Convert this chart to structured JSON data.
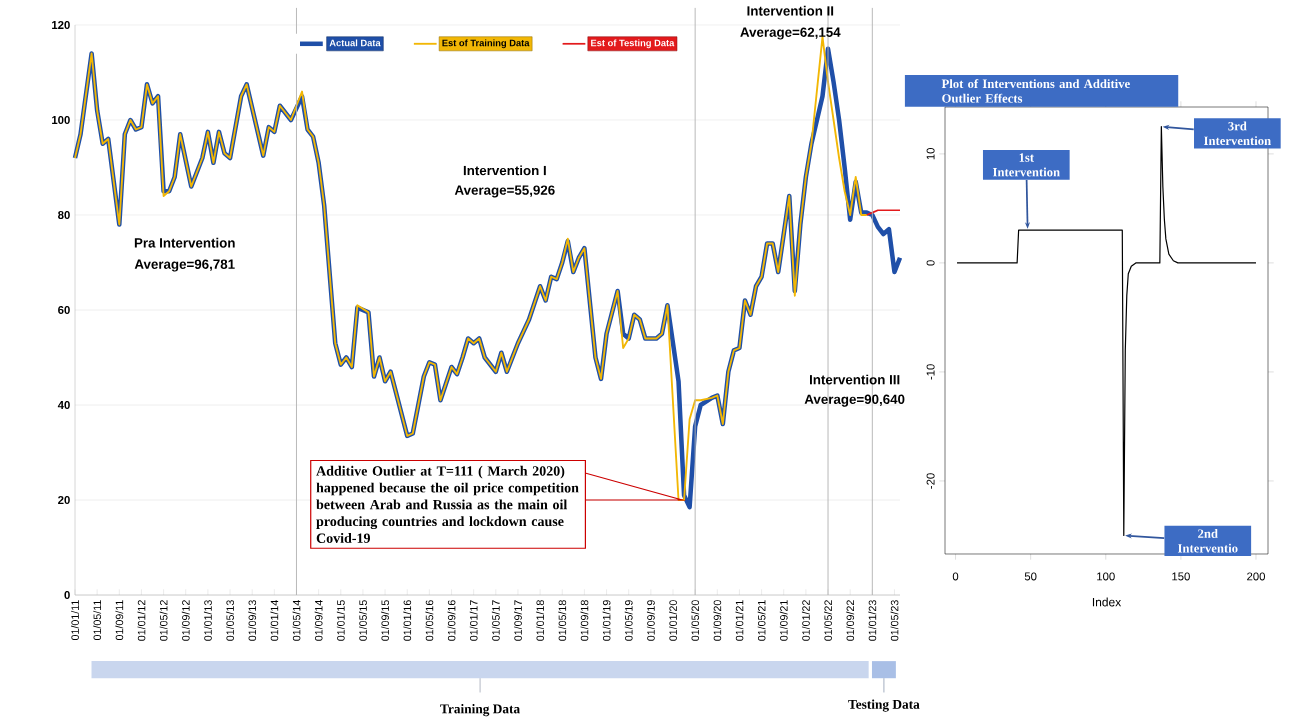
{
  "chart_data": [
    {
      "type": "line",
      "xlim": [
        "2011-01",
        "2023-06"
      ],
      "ylim": [
        0,
        120
      ],
      "yticks": [
        0,
        20,
        40,
        60,
        80,
        100,
        120
      ],
      "grid": "y",
      "legend": "top",
      "xticks": [
        {
          "value": "2011-01",
          "label": "01/01/11"
        },
        {
          "value": "2011-05",
          "label": "01/05/11"
        },
        {
          "value": "2011-09",
          "label": "01/09/11"
        },
        {
          "value": "2012-01",
          "label": "01/01/12"
        },
        {
          "value": "2012-05",
          "label": "01/05/12"
        },
        {
          "value": "2012-09",
          "label": "01/09/12"
        },
        {
          "value": "2013-01",
          "label": "01/01/13"
        },
        {
          "value": "2013-05",
          "label": "01/05/13"
        },
        {
          "value": "2013-09",
          "label": "01/09/13"
        },
        {
          "value": "2014-01",
          "label": "01/01/14"
        },
        {
          "value": "2014-05",
          "label": "01/05/14"
        },
        {
          "value": "2014-09",
          "label": "01/09/14"
        },
        {
          "value": "2015-01",
          "label": "01/01/15"
        },
        {
          "value": "2015-05",
          "label": "01/05/15"
        },
        {
          "value": "2015-09",
          "label": "01/09/15"
        },
        {
          "value": "2016-01",
          "label": "01/01/16"
        },
        {
          "value": "2016-05",
          "label": "01/05/16"
        },
        {
          "value": "2016-09",
          "label": "01/09/16"
        },
        {
          "value": "2017-01",
          "label": "01/01/17"
        },
        {
          "value": "2017-05",
          "label": "01/05/17"
        },
        {
          "value": "2017-09",
          "label": "01/09/17"
        },
        {
          "value": "2018-01",
          "label": "01/01/18"
        },
        {
          "value": "2018-05",
          "label": "01/05/18"
        },
        {
          "value": "2018-09",
          "label": "01/09/18"
        },
        {
          "value": "2019-01",
          "label": "01/01/19"
        },
        {
          "value": "2019-05",
          "label": "01/05/19"
        },
        {
          "value": "2019-09",
          "label": "01/09/19"
        },
        {
          "value": "2020-01",
          "label": "01/01/20"
        },
        {
          "value": "2020-05",
          "label": "01/05/20"
        },
        {
          "value": "2020-09",
          "label": "01/09/20"
        },
        {
          "value": "2021-01",
          "label": "01/01/21"
        },
        {
          "value": "2021-05",
          "label": "01/05/21"
        },
        {
          "value": "2021-09",
          "label": "01/09/21"
        },
        {
          "value": "2022-01",
          "label": "01/01/22"
        },
        {
          "value": "2022-05",
          "label": "01/05/22"
        },
        {
          "value": "2022-09",
          "label": "01/09/22"
        },
        {
          "value": "2023-01",
          "label": "01/01/23"
        },
        {
          "value": "2023-05",
          "label": "01/05/23"
        }
      ],
      "series": [
        {
          "name": "Actual Data",
          "color": "#1f4fa8",
          "x": [
            "2011-01",
            "2011-02",
            "2011-04",
            "2011-05",
            "2011-06",
            "2011-07",
            "2011-09",
            "2011-10",
            "2011-11",
            "2011-12",
            "2012-01",
            "2012-02",
            "2012-03",
            "2012-04",
            "2012-05",
            "2012-06",
            "2012-07",
            "2012-08",
            "2012-10",
            "2012-12",
            "2013-01",
            "2013-02",
            "2013-03",
            "2013-04",
            "2013-05",
            "2013-07",
            "2013-08",
            "2013-11",
            "2013-12",
            "2014-01",
            "2014-02",
            "2014-04",
            "2014-06",
            "2014-07",
            "2014-08",
            "2014-09",
            "2014-10",
            "2014-12",
            "2015-01",
            "2015-02",
            "2015-03",
            "2015-04",
            "2015-06",
            "2015-07",
            "2015-08",
            "2015-09",
            "2015-10",
            "2016-01",
            "2016-02",
            "2016-04",
            "2016-05",
            "2016-06",
            "2016-07",
            "2016-09",
            "2016-10",
            "2016-11",
            "2016-12",
            "2017-01",
            "2017-02",
            "2017-03",
            "2017-05",
            "2017-06",
            "2017-07",
            "2017-09",
            "2017-11",
            "2018-01",
            "2018-02",
            "2018-03",
            "2018-04",
            "2018-05",
            "2018-06",
            "2018-07",
            "2018-08",
            "2018-09",
            "2018-11",
            "2018-12",
            "2019-01",
            "2019-03",
            "2019-04",
            "2019-05",
            "2019-06",
            "2019-07",
            "2019-08",
            "2019-10",
            "2019-11",
            "2019-12",
            "2020-02",
            "2020-03",
            "2020-04",
            "2020-05",
            "2020-06",
            "2020-08",
            "2020-09",
            "2020-10",
            "2020-11",
            "2020-12",
            "2021-01",
            "2021-02",
            "2021-03",
            "2021-04",
            "2021-05",
            "2021-06",
            "2021-07",
            "2021-08",
            "2021-10",
            "2021-11",
            "2021-12",
            "2022-01",
            "2022-02",
            "2022-04",
            "2022-05",
            "2022-06",
            "2022-07",
            "2022-08",
            "2022-09",
            "2022-10",
            "2022-11",
            "2022-12",
            "2023-01",
            "2023-02",
            "2023-03",
            "2023-04",
            "2023-05",
            "2023-06"
          ],
          "values": [
            92,
            97,
            114,
            102,
            95,
            96,
            78,
            97,
            100,
            98,
            98.5,
            107.5,
            103.5,
            105,
            85,
            85,
            88,
            97,
            86,
            92,
            97.5,
            91,
            97.5,
            93,
            92,
            105,
            107.5,
            92.5,
            98.5,
            97.5,
            103,
            100,
            105,
            98,
            96.5,
            91,
            82,
            53,
            48.5,
            50,
            48,
            60.5,
            59.5,
            46,
            50,
            45,
            47,
            33.5,
            34,
            46,
            49,
            48.5,
            41,
            48,
            46.5,
            50,
            54,
            53,
            54,
            50,
            47,
            51,
            47,
            53,
            58,
            65,
            62,
            67,
            66.5,
            70,
            74.5,
            68,
            71,
            73,
            50,
            45.5,
            55,
            64,
            55,
            54,
            59,
            58,
            54,
            54,
            55,
            61,
            45,
            21,
            18.5,
            35.5,
            40,
            41.5,
            42,
            36,
            47,
            51.5,
            52,
            62,
            59,
            65,
            67,
            74,
            74,
            68,
            84,
            64,
            78,
            88,
            95,
            105,
            115,
            108,
            100,
            90,
            79,
            87,
            80.5,
            80.5,
            80,
            77.5,
            76,
            77,
            68,
            71
          ]
        },
        {
          "name": "Est of Training Data",
          "color": "#f2b705",
          "x": [
            "2011-01",
            "2011-02",
            "2011-04",
            "2011-05",
            "2011-06",
            "2011-07",
            "2011-09",
            "2011-10",
            "2011-11",
            "2011-12",
            "2012-01",
            "2012-02",
            "2012-03",
            "2012-04",
            "2012-05",
            "2012-06",
            "2012-07",
            "2012-08",
            "2012-10",
            "2012-12",
            "2013-01",
            "2013-02",
            "2013-03",
            "2013-04",
            "2013-05",
            "2013-07",
            "2013-08",
            "2013-11",
            "2013-12",
            "2014-01",
            "2014-02",
            "2014-04",
            "2014-06",
            "2014-07",
            "2014-08",
            "2014-09",
            "2014-10",
            "2014-12",
            "2015-01",
            "2015-02",
            "2015-03",
            "2015-04",
            "2015-06",
            "2015-07",
            "2015-08",
            "2015-09",
            "2015-10",
            "2016-01",
            "2016-02",
            "2016-04",
            "2016-05",
            "2016-06",
            "2016-07",
            "2016-09",
            "2016-10",
            "2016-11",
            "2016-12",
            "2017-01",
            "2017-02",
            "2017-03",
            "2017-05",
            "2017-06",
            "2017-07",
            "2017-09",
            "2017-11",
            "2018-01",
            "2018-02",
            "2018-03",
            "2018-04",
            "2018-05",
            "2018-06",
            "2018-07",
            "2018-08",
            "2018-09",
            "2018-11",
            "2018-12",
            "2019-01",
            "2019-03",
            "2019-04",
            "2019-05",
            "2019-06",
            "2019-07",
            "2019-08",
            "2019-10",
            "2019-11",
            "2019-12",
            "2020-02",
            "2020-03",
            "2020-04",
            "2020-05",
            "2020-06",
            "2020-08",
            "2020-09",
            "2020-10",
            "2020-11",
            "2020-12",
            "2021-01",
            "2021-02",
            "2021-03",
            "2021-04",
            "2021-05",
            "2021-06",
            "2021-07",
            "2021-08",
            "2021-10",
            "2021-11",
            "2021-12",
            "2022-01",
            "2022-02",
            "2022-04",
            "2022-05",
            "2022-06",
            "2022-07",
            "2022-08",
            "2022-09",
            "2022-10",
            "2022-11",
            "2022-12"
          ],
          "values": [
            92,
            97,
            114,
            102,
            95,
            96,
            78,
            97,
            100,
            98,
            98.5,
            107.5,
            103.5,
            105,
            84,
            85,
            88,
            97,
            86,
            92,
            97.5,
            91,
            97.5,
            93,
            92,
            105,
            107.5,
            92.5,
            98.5,
            97.5,
            103,
            100,
            106,
            98,
            96.5,
            91,
            82,
            53,
            48.5,
            50,
            48,
            61,
            59.5,
            46,
            50,
            45,
            47,
            33.5,
            34,
            46,
            49,
            48.5,
            41,
            48,
            46.5,
            50,
            54,
            53,
            54,
            50,
            47,
            51,
            47,
            53,
            58,
            65,
            62,
            67,
            66.5,
            70,
            75,
            68,
            71,
            73,
            50,
            45.5,
            55,
            64,
            52,
            54,
            59,
            58,
            54,
            54,
            55,
            61,
            20,
            20,
            37,
            41,
            41,
            41.5,
            42,
            36,
            47,
            51.5,
            52,
            62,
            59,
            65,
            67,
            74,
            74,
            68,
            84,
            63,
            78,
            88,
            95,
            117.5,
            108,
            100,
            92,
            85,
            80,
            88,
            80,
            80
          ]
        },
        {
          "name": "Est of Testing Data",
          "color": "#e31a1c",
          "x": [
            "2022-12",
            "2023-01",
            "2023-02",
            "2023-03",
            "2023-04",
            "2023-05",
            "2023-06"
          ],
          "values": [
            80,
            80.5,
            81,
            81,
            81,
            81,
            81
          ]
        }
      ],
      "ref_lines": [
        {
          "axis": "x",
          "value": "2014-05",
          "color": "#b4b4b4"
        },
        {
          "axis": "x",
          "value": "2020-05",
          "color": "#b4b4b4"
        },
        {
          "axis": "x",
          "value": "2022-05",
          "color": "#b4b4b4"
        },
        {
          "axis": "x",
          "value": "2023-01",
          "color": "#b4b4b4"
        }
      ],
      "annotations": [
        "Pra Intervention",
        "Average=96,781",
        "Intervention I",
        "Average=55,926",
        "Intervention II",
        "Average=62,154",
        "Intervention III",
        "Average=90,640",
        "Additive Outlier at T=111 ( March 2020) happened because the oil price competition between Arab and Russia as the main oil producing countries and lockdown cause Covid-19",
        "Training Data",
        "Testing Data"
      ]
    },
    {
      "type": "line",
      "title": "Plot of Interventions and Additive Outlier Effects",
      "xlabel": "Index",
      "color": "#000000",
      "x": [
        1,
        41,
        42,
        111,
        112,
        113,
        114,
        115,
        117,
        120,
        136,
        137,
        138,
        139,
        140,
        142,
        145,
        148,
        200
      ],
      "values": [
        0,
        0,
        3,
        3,
        -25,
        -8,
        -3,
        -1,
        -0.3,
        0,
        0,
        12.5,
        7,
        4,
        2.2,
        0.8,
        0.2,
        0,
        0
      ],
      "xlim": [
        -7,
        208
      ],
      "xticks": [
        0,
        50,
        100,
        150,
        200
      ],
      "ylim": [
        -26.7,
        14.3
      ],
      "yticks": [
        -20,
        -10,
        0,
        10
      ],
      "annotations": [
        {
          "text": "1st Intervention",
          "x": 48,
          "y": 3
        },
        {
          "text": "2nd Interventio",
          "x": 112,
          "y": -25
        },
        {
          "text": "3rd Intervention",
          "x": 137,
          "y": 12.5
        }
      ]
    }
  ]
}
